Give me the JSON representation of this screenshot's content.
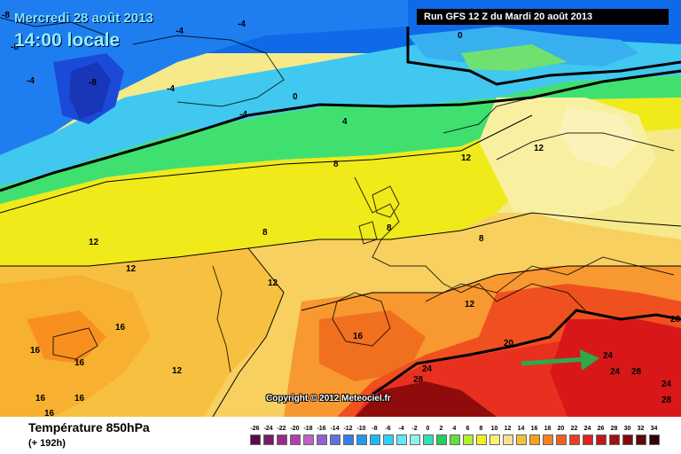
{
  "header": {
    "date_line": "Mercredi 28 août 2013",
    "time_line": "14:00 locale",
    "run_info": "Run GFS 12 Z du Mardi 20 août 2013"
  },
  "map": {
    "copyright": "Copyright © 2012 Meteociel.fr",
    "contour_labels": [
      "-8",
      "-8",
      "-4",
      "-4",
      "-4",
      "-8",
      "-4",
      "-4",
      "0",
      "0",
      "4",
      "8",
      "12",
      "12",
      "8",
      "8",
      "12",
      "12",
      "8",
      "12",
      "12",
      "16",
      "16",
      "16",
      "16",
      "16",
      "16",
      "16",
      "24",
      "28",
      "20",
      "24",
      "28",
      "24",
      "24",
      "28",
      "28",
      "12"
    ],
    "arrow_color": "#2fa84a"
  },
  "footer": {
    "variable": "Température 850hPa",
    "lead_time": "(+ 192h)"
  },
  "legend": {
    "ticks": [
      "-26",
      "-24",
      "-22",
      "-20",
      "-18",
      "-16",
      "-14",
      "-12",
      "-10",
      "-8",
      "-6",
      "-4",
      "-2",
      "0",
      "2",
      "4",
      "6",
      "8",
      "10",
      "12",
      "14",
      "16",
      "18",
      "20",
      "22",
      "24",
      "26",
      "28",
      "30",
      "32",
      "34"
    ],
    "colors": [
      "#5a0a4a",
      "#7a1a6a",
      "#9a2a8a",
      "#b040a8",
      "#c060c8",
      "#9060d8",
      "#6070e0",
      "#3080e8",
      "#2098f0",
      "#20b8f8",
      "#30d0f8",
      "#60e8f8",
      "#90f0f0",
      "#30e0b0",
      "#20d060",
      "#60e040",
      "#b0f030",
      "#f0f020",
      "#f8f070",
      "#f8e090",
      "#f0c040",
      "#f8a020",
      "#f88020",
      "#f06020",
      "#e84020",
      "#e02020",
      "#c01818",
      "#a01010",
      "#800c0c",
      "#600808",
      "#300404"
    ]
  }
}
